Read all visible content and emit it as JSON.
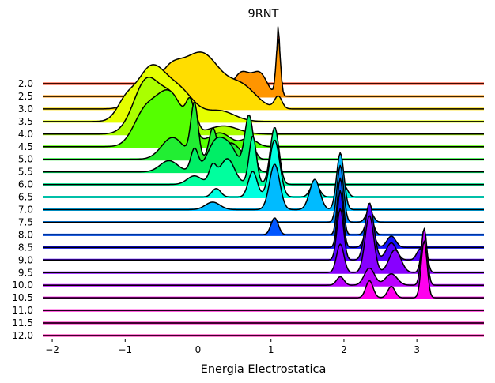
{
  "chart_data": {
    "type": "area",
    "variant": "ridgeline",
    "title": "9RNT",
    "xlabel": "Energia Electrostatica",
    "ylabel": "",
    "xlim": [
      -2.12,
      3.92
    ],
    "x_ticks": [
      -2,
      -1,
      0,
      1,
      2,
      3
    ],
    "x_tick_labels": [
      "−2",
      "−1",
      "0",
      "1",
      "2",
      "3"
    ],
    "grid": false,
    "legend": "none",
    "baseline_color": "#000000",
    "outline_color": "#000000",
    "rows": [
      {
        "label": "2.0",
        "color": "#ff2a00",
        "peaks": [
          [
            1.1,
            0.018,
            1.0
          ]
        ],
        "bandwidth": 0.02
      },
      {
        "label": "2.5",
        "color": "#ff9500",
        "peaks": [
          [
            1.1,
            0.03,
            1.0
          ],
          [
            0.6,
            0.12,
            0.42
          ],
          [
            0.85,
            0.1,
            0.38
          ],
          [
            0.2,
            0.12,
            0.28
          ],
          [
            -0.2,
            0.15,
            0.12
          ]
        ],
        "bandwidth": 0.05
      },
      {
        "label": "3.0",
        "color": "#ffdd00",
        "peaks": [
          [
            0.05,
            0.25,
            0.9
          ],
          [
            -0.4,
            0.18,
            0.55
          ],
          [
            0.6,
            0.2,
            0.35
          ],
          [
            -0.8,
            0.15,
            0.25
          ],
          [
            1.1,
            0.05,
            0.2
          ]
        ],
        "bandwidth": 0.1
      },
      {
        "label": "3.5",
        "color": "#e5ff00",
        "peaks": [
          [
            -0.65,
            0.2,
            1.0
          ],
          [
            -0.25,
            0.2,
            0.55
          ],
          [
            -1.0,
            0.12,
            0.3
          ],
          [
            0.3,
            0.2,
            0.2
          ]
        ],
        "bandwidth": 0.1
      },
      {
        "label": "4.0",
        "color": "#aaff00",
        "peaks": [
          [
            -0.7,
            0.18,
            1.0
          ],
          [
            -0.35,
            0.15,
            0.6
          ],
          [
            -0.05,
            0.05,
            0.3
          ],
          [
            0.35,
            0.2,
            0.15
          ]
        ],
        "bandwidth": 0.08
      },
      {
        "label": "4.5",
        "color": "#55ff00",
        "peaks": [
          [
            -0.4,
            0.2,
            1.0
          ],
          [
            -0.75,
            0.15,
            0.5
          ],
          [
            -0.1,
            0.06,
            0.55
          ],
          [
            0.3,
            0.15,
            0.25
          ],
          [
            0.7,
            0.1,
            0.15
          ]
        ],
        "bandwidth": 0.08
      },
      {
        "label": "5.0",
        "color": "#22ee33",
        "peaks": [
          [
            -0.05,
            0.05,
            1.0
          ],
          [
            0.2,
            0.05,
            0.55
          ],
          [
            -0.35,
            0.15,
            0.4
          ],
          [
            0.45,
            0.12,
            0.3
          ],
          [
            0.75,
            0.05,
            0.2
          ]
        ],
        "bandwidth": 0.05
      },
      {
        "label": "5.5",
        "color": "#00ee66",
        "peaks": [
          [
            0.7,
            0.06,
            1.0
          ],
          [
            0.25,
            0.12,
            0.55
          ],
          [
            -0.05,
            0.05,
            0.4
          ],
          [
            0.45,
            0.1,
            0.35
          ],
          [
            -0.4,
            0.12,
            0.2
          ]
        ],
        "bandwidth": 0.05
      },
      {
        "label": "6.0",
        "color": "#00ff9e",
        "peaks": [
          [
            1.05,
            0.06,
            1.0
          ],
          [
            0.75,
            0.05,
            0.85
          ],
          [
            0.4,
            0.1,
            0.45
          ],
          [
            0.2,
            0.05,
            0.3
          ],
          [
            -0.05,
            0.1,
            0.15
          ]
        ],
        "bandwidth": 0.04
      },
      {
        "label": "6.5",
        "color": "#00ffe0",
        "peaks": [
          [
            1.05,
            0.07,
            1.0
          ],
          [
            0.75,
            0.06,
            0.45
          ],
          [
            1.6,
            0.06,
            0.25
          ],
          [
            2.0,
            0.05,
            0.2
          ],
          [
            0.25,
            0.06,
            0.15
          ]
        ],
        "bandwidth": 0.04
      },
      {
        "label": "7.0",
        "color": "#00bbff",
        "peaks": [
          [
            1.05,
            0.07,
            0.6
          ],
          [
            1.6,
            0.07,
            0.4
          ],
          [
            1.95,
            0.05,
            0.75
          ],
          [
            0.2,
            0.1,
            0.1
          ]
        ],
        "bandwidth": 0.04
      },
      {
        "label": "7.5",
        "color": "#0088ff",
        "peaks": [
          [
            1.95,
            0.045,
            1.0
          ],
          [
            2.35,
            0.05,
            0.2
          ]
        ],
        "bandwidth": 0.03
      },
      {
        "label": "8.0",
        "color": "#0055ff",
        "peaks": [
          [
            1.05,
            0.05,
            0.3
          ],
          [
            1.95,
            0.04,
            1.0
          ],
          [
            2.35,
            0.05,
            0.35
          ]
        ],
        "bandwidth": 0.03
      },
      {
        "label": "8.5",
        "color": "#1111ff",
        "peaks": [
          [
            1.95,
            0.04,
            1.0
          ],
          [
            2.35,
            0.06,
            0.4
          ],
          [
            2.65,
            0.06,
            0.2
          ]
        ],
        "bandwidth": 0.03
      },
      {
        "label": "9.0",
        "color": "#5500ff",
        "peaks": [
          [
            1.95,
            0.045,
            0.9
          ],
          [
            2.35,
            0.06,
            1.0
          ],
          [
            2.65,
            0.07,
            0.3
          ],
          [
            3.05,
            0.05,
            0.2
          ]
        ],
        "bandwidth": 0.03
      },
      {
        "label": "9.5",
        "color": "#8800ff",
        "peaks": [
          [
            2.35,
            0.06,
            1.0
          ],
          [
            1.95,
            0.05,
            0.5
          ],
          [
            2.7,
            0.08,
            0.4
          ],
          [
            3.1,
            0.04,
            0.6
          ]
        ],
        "bandwidth": 0.03
      },
      {
        "label": "10.0",
        "color": "#bb00ff",
        "peaks": [
          [
            3.1,
            0.04,
            1.0
          ],
          [
            2.35,
            0.07,
            0.3
          ],
          [
            2.65,
            0.08,
            0.2
          ],
          [
            1.95,
            0.05,
            0.15
          ]
        ],
        "bandwidth": 0.03
      },
      {
        "label": "10.5",
        "color": "#ff00ee",
        "peaks": [
          [
            3.1,
            0.04,
            1.0
          ],
          [
            2.35,
            0.05,
            0.3
          ],
          [
            2.65,
            0.05,
            0.2
          ]
        ],
        "bandwidth": 0.03
      },
      {
        "label": "11.0",
        "color": "#ff00cc",
        "peaks": [],
        "bandwidth": 0.03
      },
      {
        "label": "11.5",
        "color": "#ff00bb",
        "peaks": [],
        "bandwidth": 0.03
      },
      {
        "label": "12.0",
        "color": "#ff00aa",
        "peaks": [],
        "bandwidth": 0.03
      }
    ]
  }
}
